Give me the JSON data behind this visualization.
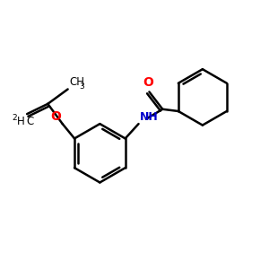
{
  "background_color": "#ffffff",
  "line_color": "#000000",
  "o_color": "#ff0000",
  "n_color": "#0000cc",
  "bond_width": 1.8,
  "figsize": [
    3.0,
    3.0
  ],
  "dpi": 100,
  "xlim": [
    0,
    10
  ],
  "ylim": [
    0,
    10
  ]
}
